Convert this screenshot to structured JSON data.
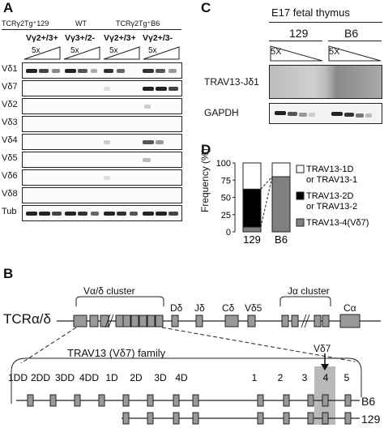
{
  "panel_letters": {
    "a": "A",
    "b": "B",
    "c": "C",
    "d": "D"
  },
  "panel_a": {
    "strain_headers": [
      "TCRγ2Tg⁺129",
      "WT",
      "TCRγ2Tg⁺B6"
    ],
    "genotypes": [
      "Vγ2+/3+",
      "Vγ3+/2-",
      "Vγ2+/3+",
      "Vγ2+/3-"
    ],
    "dilution_label": "5x",
    "rows": [
      "Vδ1",
      "Vδ7",
      "Vδ2",
      "Vδ3",
      "Vδ4",
      "Vδ5",
      "Vδ6",
      "Vδ8",
      "Tub"
    ]
  },
  "panel_c": {
    "title": "E17 fetal thymus",
    "strains": [
      "129",
      "B6"
    ],
    "dilution_label": "5X",
    "rows": [
      "TRAV13-Jδ1",
      "GAPDH"
    ]
  },
  "panel_d": {
    "chart_data": {
      "type": "bar",
      "stacked": true,
      "categories": [
        "129",
        "B6"
      ],
      "ylabel": "Frequency (%)",
      "yticks": [
        "0",
        "25",
        "50",
        "75",
        "100"
      ],
      "ylim": [
        0,
        100
      ],
      "series": [
        {
          "name": "TRAV13-4(Vδ7)",
          "color": "#808080",
          "values": [
            7,
            80
          ]
        },
        {
          "name": "TRAV13-2D or TRAV13-2",
          "color": "#000000",
          "values": [
            55,
            0
          ]
        },
        {
          "name": "TRAV13-1D or TRAV13-1",
          "color": "#ffffff",
          "values": [
            38,
            20
          ]
        }
      ],
      "legend": [
        {
          "line1": "TRAV13-1D",
          "line2": "or TRAV13-1",
          "color": "#ffffff"
        },
        {
          "line1": "TRAV13-2D",
          "line2": "or TRAV13-2",
          "color": "#000000"
        },
        {
          "line1": "TRAV13-4(Vδ7)",
          "line2": "",
          "color": "#808080"
        }
      ]
    }
  },
  "panel_b": {
    "locus_label": "TCRα/δ",
    "cluster_labels": [
      "Vα/δ cluster",
      "Jα cluster"
    ],
    "segment_labels": [
      "Dδ",
      "Jδ",
      "Cδ",
      "Vδ5",
      "Cα"
    ],
    "family_label": "TRAV13 (Vδ7) family",
    "highlight_label": "Vδ7",
    "gene_labels": [
      "1DD",
      "2DD",
      "3DD",
      "4DD",
      "1D",
      "2D",
      "3D",
      "4D",
      "1",
      "2",
      "3",
      "4",
      "5"
    ],
    "strain_labels": [
      "B6",
      "129"
    ]
  }
}
